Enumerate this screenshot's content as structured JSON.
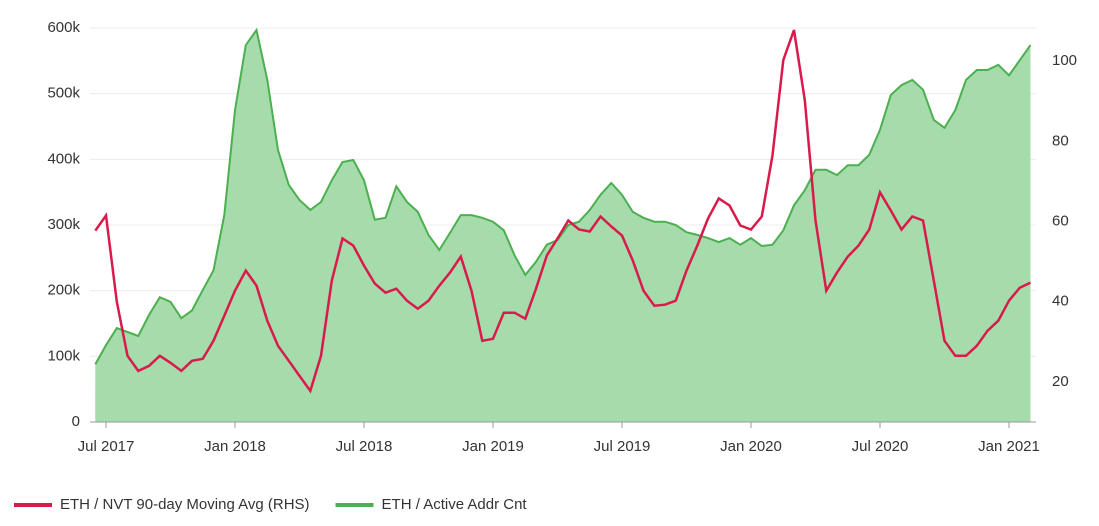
{
  "chart_data": {
    "type": "area",
    "categories": [
      null,
      "Jul 2017",
      null,
      null,
      null,
      null,
      null,
      null,
      null,
      null,
      null,
      null,
      null,
      "Jan 2018",
      null,
      null,
      null,
      null,
      null,
      null,
      null,
      null,
      null,
      null,
      null,
      "Jul 2018",
      null,
      null,
      null,
      null,
      null,
      null,
      null,
      null,
      null,
      null,
      null,
      "Jan 2019",
      null,
      null,
      null,
      null,
      null,
      null,
      null,
      null,
      null,
      null,
      null,
      "Jul 2019",
      null,
      null,
      null,
      null,
      null,
      null,
      null,
      null,
      null,
      null,
      null,
      "Jan 2020",
      null,
      null,
      null,
      null,
      null,
      null,
      null,
      null,
      null,
      null,
      null,
      "Jul 2020",
      null,
      null,
      null,
      null,
      null,
      null,
      null,
      null,
      null,
      null,
      null,
      "Jan 2021",
      null,
      null
    ],
    "series": [
      {
        "name": "ETH / NVT 90-day Moving Avg (RHS)",
        "type": "line",
        "axis": "y2",
        "color": "#d81b4a",
        "values": [
          57.7,
          61.5,
          40,
          26.5,
          22.75,
          24,
          26.5,
          24.75,
          22.75,
          25.25,
          25.75,
          30.25,
          36.5,
          42.75,
          47.75,
          44,
          35.25,
          29,
          25.25,
          21.5,
          17.75,
          26.5,
          45.25,
          55.75,
          54,
          49,
          44.5,
          42.25,
          43.25,
          40.25,
          38.25,
          40.25,
          44,
          47.25,
          51.25,
          42.75,
          30.25,
          30.75,
          37.25,
          37.25,
          35.75,
          43.25,
          51.5,
          55.75,
          60.25,
          58,
          57.5,
          61.25,
          58.75,
          56.5,
          50.25,
          42.75,
          39,
          39.25,
          40.25,
          47.75,
          54,
          60.75,
          65.75,
          64,
          59,
          58,
          61.25,
          76.5,
          100.25,
          107.75,
          90.25,
          60.25,
          42.75,
          47.25,
          51.25,
          54,
          58,
          67.25,
          62.75,
          58,
          61.25,
          60.25,
          45.25,
          30.25,
          26.5,
          26.5,
          29,
          32.75,
          35.25,
          40.25,
          43.5,
          44.75
        ]
      },
      {
        "name": "ETH / Active Addr Cnt",
        "type": "area",
        "color": "#4caf50",
        "fill": "#a6dbac",
        "values": [
          88000,
          117000,
          143000,
          137000,
          131000,
          163000,
          190000,
          183000,
          158000,
          170000,
          201000,
          231000,
          315000,
          475000,
          574000,
          597000,
          521000,
          414000,
          361000,
          338000,
          323000,
          335000,
          368000,
          396000,
          399000,
          368000,
          308000,
          311000,
          359000,
          335000,
          320000,
          285000,
          262000,
          288000,
          315000,
          315000,
          311000,
          305000,
          292000,
          254000,
          224000,
          244000,
          270000,
          277000,
          300000,
          305000,
          323000,
          346000,
          364000,
          346000,
          320000,
          311000,
          305000,
          305000,
          300000,
          289000,
          285000,
          280000,
          274000,
          280000,
          270000,
          280000,
          268000,
          270000,
          292000,
          330000,
          353000,
          384000,
          384000,
          376000,
          391000,
          391000,
          407000,
          445000,
          498000,
          513000,
          521000,
          506000,
          460000,
          448000,
          475000,
          521000,
          536000,
          536000,
          544000,
          528000,
          551000,
          574000
        ]
      }
    ],
    "ylim": [
      0,
      600000
    ],
    "yticks": [
      0,
      {
        "value": 100000,
        "label": "100k"
      },
      {
        "value": 200000,
        "label": "200k"
      },
      {
        "value": 300000,
        "label": "300k"
      },
      {
        "value": 400000,
        "label": "400k"
      },
      {
        "value": 500000,
        "label": "500k"
      },
      {
        "value": 600000,
        "label": "600k"
      }
    ],
    "y2lim": [
      10,
      108.25
    ],
    "y2ticks": [
      20,
      40,
      60,
      80,
      100
    ],
    "grid": true,
    "legend": "bottom"
  }
}
